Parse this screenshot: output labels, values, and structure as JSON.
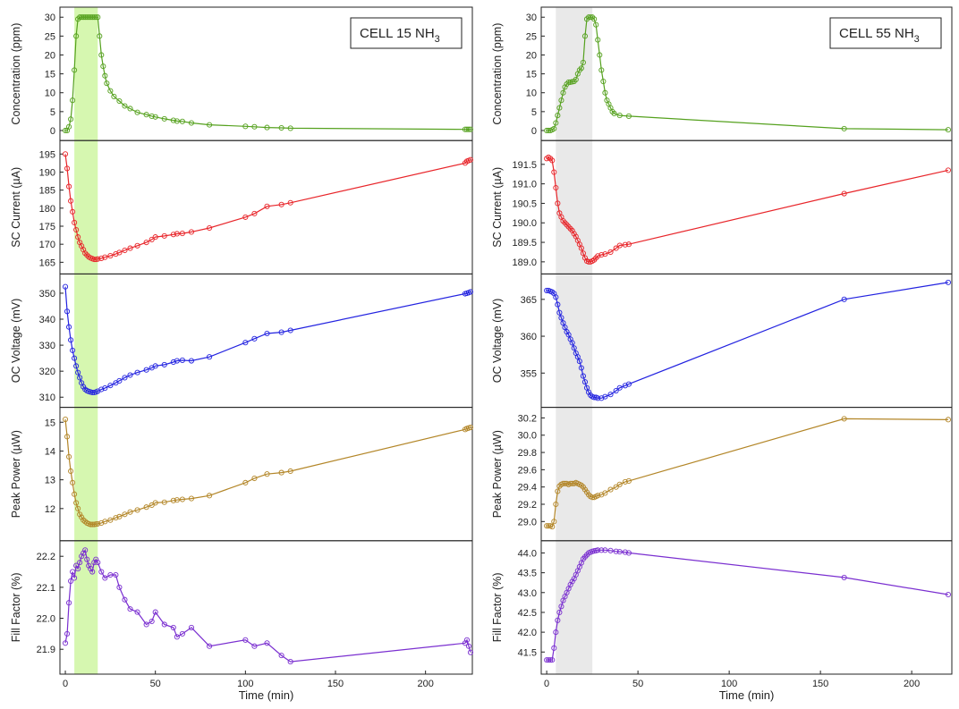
{
  "colors": {
    "concentration": "#55a11e",
    "sc_current": "#e8252a",
    "oc_voltage": "#2323e0",
    "peak_power": "#b38628",
    "fill_factor": "#7a2fd0",
    "exposure_left": "#d6f7b0",
    "exposure_right": "#e9e9e9"
  },
  "chart_data": [
    {
      "type": "line",
      "title_text": "CELL 15 NH",
      "title_sub": "3",
      "xlabel": "Time (min)",
      "xlim": [
        -3,
        226
      ],
      "xticks": [
        0,
        50,
        100,
        150,
        200
      ],
      "exposure_window": [
        5,
        18
      ],
      "marker": "open-circle",
      "panels": [
        {
          "key": "concentration",
          "ylabel": "Concentration (ppm)",
          "ylim": [
            -1,
            31
          ],
          "yticks": [
            0,
            5,
            10,
            15,
            20,
            25,
            30
          ],
          "x": [
            0,
            1,
            2,
            3,
            4,
            5,
            6,
            7,
            8,
            9,
            10,
            11,
            12,
            13,
            14,
            15,
            16,
            17,
            18,
            19,
            20,
            21,
            22,
            23,
            25,
            27,
            30,
            33,
            36,
            40,
            45,
            48,
            50,
            55,
            60,
            62,
            65,
            70,
            80,
            100,
            105,
            112,
            120,
            125,
            222,
            223,
            224,
            225
          ],
          "y": [
            0,
            0,
            1,
            3,
            8,
            16,
            25,
            29.5,
            30,
            30,
            30,
            30,
            30,
            30,
            30,
            30,
            30,
            30,
            30,
            25,
            20,
            17,
            14.5,
            12.5,
            10.5,
            9,
            7.8,
            6.5,
            5.8,
            4.8,
            4.2,
            3.8,
            3.6,
            3.1,
            2.7,
            2.5,
            2.4,
            2,
            1.5,
            1.1,
            1,
            0.8,
            0.7,
            0.6,
            0.3,
            0.3,
            0.3,
            0.3
          ]
        },
        {
          "key": "sc_current",
          "ylabel": "SC Current (µA)",
          "ylim": [
            163.5,
            197
          ],
          "yticks": [
            165,
            170,
            175,
            180,
            185,
            190,
            195
          ],
          "x": [
            0,
            1,
            2,
            3,
            4,
            5,
            6,
            7,
            8,
            9,
            10,
            11,
            12,
            13,
            14,
            15,
            16,
            17,
            18,
            20,
            22,
            25,
            28,
            30,
            33,
            36,
            40,
            45,
            48,
            50,
            55,
            60,
            62,
            65,
            70,
            80,
            100,
            105,
            112,
            120,
            125,
            222,
            223,
            224,
            225
          ],
          "y": [
            195,
            191,
            186,
            182,
            179,
            176,
            174,
            172,
            170.5,
            169.5,
            168.5,
            167.5,
            167,
            166.5,
            166.2,
            166,
            165.8,
            165.8,
            165.9,
            166.1,
            166.4,
            166.8,
            167.3,
            167.7,
            168.3,
            168.9,
            169.6,
            170.5,
            171.3,
            172,
            172.3,
            172.7,
            172.9,
            173,
            173.4,
            174.5,
            177.5,
            178.5,
            180.5,
            181,
            181.5,
            192.5,
            193,
            193.2,
            193.4
          ]
        },
        {
          "key": "oc_voltage",
          "ylabel": "OC Voltage (mV)",
          "ylim": [
            308.5,
            355
          ],
          "yticks": [
            310,
            320,
            330,
            340,
            350
          ],
          "x": [
            0,
            1,
            2,
            3,
            4,
            5,
            6,
            7,
            8,
            9,
            10,
            11,
            12,
            13,
            14,
            15,
            16,
            17,
            18,
            20,
            22,
            25,
            28,
            30,
            33,
            36,
            40,
            45,
            48,
            50,
            55,
            60,
            62,
            65,
            70,
            80,
            100,
            105,
            112,
            120,
            125,
            222,
            223,
            224,
            225
          ],
          "y": [
            352.5,
            343,
            337,
            332,
            328,
            325,
            322,
            319.5,
            317.5,
            315.5,
            314,
            313,
            312.5,
            312.2,
            312,
            311.8,
            311.8,
            312,
            312.3,
            313,
            313.5,
            314.5,
            315.5,
            316.3,
            317.5,
            318.5,
            319.5,
            320.5,
            321.3,
            322,
            322.5,
            323.5,
            324,
            324.2,
            324,
            325.5,
            331,
            332.5,
            334.5,
            335,
            335.7,
            349.8,
            350,
            350.2,
            350.5
          ]
        },
        {
          "key": "peak_power",
          "ylabel": "Peak Power (µW)",
          "ylim": [
            11.1,
            15.3
          ],
          "yticks": [
            12,
            13,
            14,
            15
          ],
          "x": [
            0,
            1,
            2,
            3,
            4,
            5,
            6,
            7,
            8,
            9,
            10,
            11,
            12,
            13,
            14,
            15,
            16,
            17,
            18,
            20,
            22,
            25,
            28,
            30,
            33,
            36,
            40,
            45,
            48,
            50,
            55,
            60,
            62,
            65,
            70,
            80,
            100,
            105,
            112,
            120,
            125,
            222,
            223,
            224,
            225
          ],
          "y": [
            15.1,
            14.5,
            13.8,
            13.3,
            12.9,
            12.5,
            12.2,
            12,
            11.8,
            11.7,
            11.6,
            11.55,
            11.5,
            11.47,
            11.45,
            11.45,
            11.45,
            11.46,
            11.47,
            11.5,
            11.55,
            11.6,
            11.68,
            11.72,
            11.8,
            11.88,
            11.95,
            12.05,
            12.12,
            12.2,
            12.22,
            12.28,
            12.3,
            12.32,
            12.35,
            12.45,
            12.9,
            13.05,
            13.2,
            13.25,
            13.3,
            14.75,
            14.78,
            14.8,
            14.82
          ]
        },
        {
          "key": "fill_factor",
          "ylabel": "Fill Factor (%)",
          "ylim": [
            21.84,
            22.23
          ],
          "yticks": [
            21.9,
            22.0,
            22.1,
            22.2
          ],
          "x": [
            0,
            1,
            2,
            3,
            4,
            5,
            6,
            7,
            8,
            9,
            10,
            11,
            12,
            13,
            14,
            15,
            16,
            17,
            18,
            20,
            22,
            25,
            28,
            30,
            33,
            36,
            40,
            45,
            48,
            50,
            55,
            60,
            62,
            65,
            70,
            80,
            100,
            105,
            112,
            120,
            125,
            222,
            223,
            224,
            225
          ],
          "y": [
            21.92,
            21.95,
            22.05,
            22.12,
            22.15,
            22.13,
            22.17,
            22.16,
            22.18,
            22.2,
            22.21,
            22.22,
            22.19,
            22.17,
            22.16,
            22.15,
            22.18,
            22.19,
            22.18,
            22.15,
            22.13,
            22.14,
            22.14,
            22.1,
            22.06,
            22.03,
            22.02,
            21.98,
            21.99,
            22.02,
            21.98,
            21.97,
            21.94,
            21.95,
            21.97,
            21.91,
            21.93,
            21.91,
            21.92,
            21.88,
            21.86,
            21.92,
            21.93,
            21.91,
            21.89
          ]
        }
      ]
    },
    {
      "type": "line",
      "title_text": "CELL 55 NH",
      "title_sub": "3",
      "xlabel": "Time (min)",
      "xlim": [
        -3,
        222
      ],
      "xticks": [
        0,
        50,
        100,
        150,
        200
      ],
      "exposure_window": [
        5,
        25
      ],
      "marker": "open-circle",
      "panels": [
        {
          "key": "concentration",
          "ylabel": "Concentration (ppm)",
          "ylim": [
            -1,
            31
          ],
          "yticks": [
            0,
            5,
            10,
            15,
            20,
            25,
            30
          ],
          "x": [
            0,
            1,
            2,
            3,
            4,
            5,
            6,
            7,
            8,
            9,
            10,
            11,
            12,
            13,
            14,
            15,
            16,
            17,
            18,
            19,
            20,
            21,
            22,
            23,
            24,
            25,
            26,
            27,
            28,
            29,
            30,
            31,
            32,
            33,
            34,
            35,
            36,
            37,
            40,
            45,
            163,
            220
          ],
          "y": [
            0,
            0,
            0,
            0.2,
            0.5,
            2,
            4,
            6,
            8,
            10,
            11.5,
            12.3,
            12.8,
            12.8,
            12.9,
            13,
            13.5,
            15,
            16,
            16.5,
            18,
            25,
            29.5,
            30,
            30,
            30,
            29.5,
            28,
            24,
            20,
            16,
            13,
            10,
            8,
            7,
            6,
            5,
            4.5,
            4,
            3.8,
            0.5,
            0.2
          ]
        },
        {
          "key": "sc_current",
          "ylabel": "SC Current (µA)",
          "ylim": [
            188.85,
            191.95
          ],
          "yticks": [
            189.0,
            189.5,
            190.0,
            190.5,
            191.0,
            191.5
          ],
          "x": [
            0,
            1,
            2,
            3,
            4,
            5,
            6,
            7,
            8,
            9,
            10,
            11,
            12,
            13,
            14,
            15,
            16,
            17,
            18,
            19,
            20,
            21,
            22,
            23,
            24,
            25,
            26,
            27,
            28,
            30,
            32,
            35,
            38,
            40,
            43,
            45,
            163,
            220
          ],
          "y": [
            191.65,
            191.68,
            191.65,
            191.6,
            191.3,
            190.9,
            190.5,
            190.25,
            190.15,
            190.05,
            190.0,
            189.95,
            189.9,
            189.85,
            189.8,
            189.72,
            189.65,
            189.55,
            189.45,
            189.35,
            189.22,
            189.1,
            189.02,
            189.0,
            189.0,
            189.02,
            189.05,
            189.1,
            189.15,
            189.18,
            189.2,
            189.25,
            189.35,
            189.42,
            189.44,
            189.45,
            190.75,
            191.35
          ]
        },
        {
          "key": "oc_voltage",
          "ylabel": "OC Voltage (mV)",
          "ylim": [
            351.2,
            367.6
          ],
          "yticks": [
            355,
            360,
            365
          ],
          "x": [
            0,
            1,
            2,
            3,
            4,
            5,
            6,
            7,
            8,
            9,
            10,
            11,
            12,
            13,
            14,
            15,
            16,
            17,
            18,
            19,
            20,
            21,
            22,
            23,
            24,
            25,
            26,
            27,
            28,
            30,
            32,
            35,
            38,
            40,
            43,
            45,
            163,
            220
          ],
          "y": [
            366.2,
            366.2,
            366.1,
            366.0,
            365.8,
            365.3,
            364.3,
            363.2,
            362.5,
            361.8,
            361.2,
            360.6,
            360.2,
            359.6,
            359.1,
            358.4,
            357.7,
            357.2,
            356.6,
            355.7,
            354.6,
            353.8,
            353.0,
            352.4,
            352.0,
            351.8,
            351.7,
            351.7,
            351.6,
            351.6,
            351.8,
            352.1,
            352.6,
            353.0,
            353.3,
            353.5,
            365.0,
            367.3
          ]
        },
        {
          "key": "peak_power",
          "ylabel": "Peak Power (µW)",
          "ylim": [
            28.85,
            30.25
          ],
          "yticks": [
            29.0,
            29.2,
            29.4,
            29.6,
            29.8,
            30.0,
            30.2
          ],
          "x": [
            0,
            1,
            2,
            3,
            4,
            5,
            6,
            7,
            8,
            9,
            10,
            11,
            12,
            13,
            14,
            15,
            16,
            17,
            18,
            19,
            20,
            21,
            22,
            23,
            24,
            25,
            26,
            27,
            28,
            30,
            32,
            35,
            38,
            40,
            43,
            45,
            163,
            220
          ],
          "y": [
            28.95,
            28.95,
            28.95,
            28.94,
            29.0,
            29.2,
            29.35,
            29.41,
            29.43,
            29.44,
            29.44,
            29.44,
            29.43,
            29.44,
            29.44,
            29.44,
            29.45,
            29.44,
            29.43,
            29.42,
            29.4,
            29.37,
            29.34,
            29.31,
            29.29,
            29.28,
            29.28,
            29.29,
            29.3,
            29.31,
            29.33,
            29.37,
            29.4,
            29.43,
            29.46,
            29.47,
            30.19,
            30.18
          ]
        },
        {
          "key": "fill_factor",
          "ylabel": "Fill Factor (%)",
          "ylim": [
            41.1,
            44.15
          ],
          "yticks": [
            41.5,
            42.0,
            42.5,
            43.0,
            43.5,
            44.0
          ],
          "x": [
            0,
            1,
            2,
            3,
            4,
            5,
            6,
            7,
            8,
            9,
            10,
            11,
            12,
            13,
            14,
            15,
            16,
            17,
            18,
            19,
            20,
            21,
            22,
            23,
            24,
            25,
            26,
            27,
            28,
            30,
            32,
            35,
            38,
            40,
            43,
            45,
            163,
            220
          ],
          "y": [
            41.3,
            41.3,
            41.3,
            41.3,
            41.6,
            42.0,
            42.3,
            42.5,
            42.65,
            42.8,
            42.9,
            43.0,
            43.1,
            43.2,
            43.28,
            43.35,
            43.45,
            43.55,
            43.65,
            43.75,
            43.85,
            43.9,
            43.95,
            44.0,
            44.02,
            44.04,
            44.05,
            44.06,
            44.07,
            44.07,
            44.07,
            44.06,
            44.04,
            44.03,
            44.02,
            44.0,
            43.38,
            42.95
          ]
        }
      ]
    }
  ]
}
